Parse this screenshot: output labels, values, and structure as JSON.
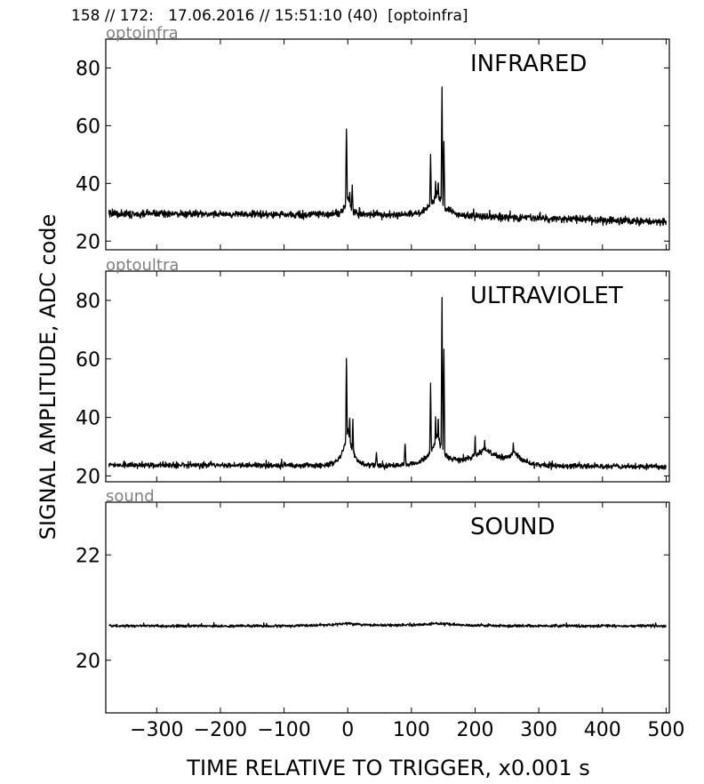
{
  "header": "158 // 172:   17.06.2016 // 15:51:10 (40)  [optoinfra]",
  "chart_data": [
    {
      "type": "line",
      "channel_label": "optoinfra",
      "title": "INFRARED",
      "xlim": [
        -380,
        505
      ],
      "ylim": [
        17,
        90
      ],
      "yticks": [
        20,
        40,
        60,
        80
      ],
      "baseline": [
        [
          -380,
          29.5
        ],
        [
          150,
          29
        ],
        [
          505,
          26.5
        ]
      ],
      "noise": 1.2,
      "spikes": [
        [
          -2,
          62
        ],
        [
          3,
          38
        ],
        [
          7,
          40
        ],
        [
          130,
          51
        ],
        [
          138,
          42
        ],
        [
          142,
          42
        ],
        [
          148,
          75
        ],
        [
          151,
          55
        ]
      ],
      "bumps": [
        [
          0,
          6,
          6
        ],
        [
          140,
          8,
          12
        ]
      ],
      "seed": 1
    },
    {
      "type": "line",
      "channel_label": "optoultra",
      "title": "ULTRAVIOLET",
      "xlim": [
        -380,
        505
      ],
      "ylim": [
        18,
        90
      ],
      "yticks": [
        20,
        40,
        60,
        80
      ],
      "baseline": [
        [
          -380,
          23.8
        ],
        [
          505,
          23.2
        ]
      ],
      "noise": 0.9,
      "spikes": [
        [
          -2,
          64
        ],
        [
          3,
          42
        ],
        [
          8,
          40
        ],
        [
          45,
          28
        ],
        [
          90,
          32
        ],
        [
          130,
          53
        ],
        [
          138,
          42
        ],
        [
          142,
          42
        ],
        [
          148,
          83
        ],
        [
          151,
          64
        ],
        [
          200,
          34
        ],
        [
          215,
          33
        ],
        [
          260,
          32
        ]
      ],
      "bumps": [
        [
          0,
          13,
          8
        ],
        [
          140,
          10,
          12
        ],
        [
          215,
          6,
          30
        ],
        [
          262,
          4,
          10
        ]
      ],
      "seed": 2
    },
    {
      "type": "line",
      "channel_label": "sound",
      "title": "SOUND",
      "xlim": [
        -380,
        505
      ],
      "ylim": [
        19,
        23
      ],
      "yticks": [
        20,
        22
      ],
      "baseline": [
        [
          -380,
          20.65
        ],
        [
          505,
          20.65
        ]
      ],
      "noise": 0.025,
      "spikes": [],
      "bumps": [
        [
          0,
          0.05,
          30
        ],
        [
          140,
          0.05,
          40
        ]
      ],
      "seed": 3
    }
  ],
  "xticks": [
    -300,
    -200,
    -100,
    0,
    100,
    200,
    300,
    400,
    500
  ],
  "xtick_labels": [
    "−300",
    "−200",
    "−100",
    "0",
    "100",
    "200",
    "300",
    "400",
    "500"
  ],
  "xlabel": "TIME RELATIVE TO TRIGGER,   x0.001 s",
  "ylabel": "SIGNAL AMPLITUDE,  ADC code"
}
